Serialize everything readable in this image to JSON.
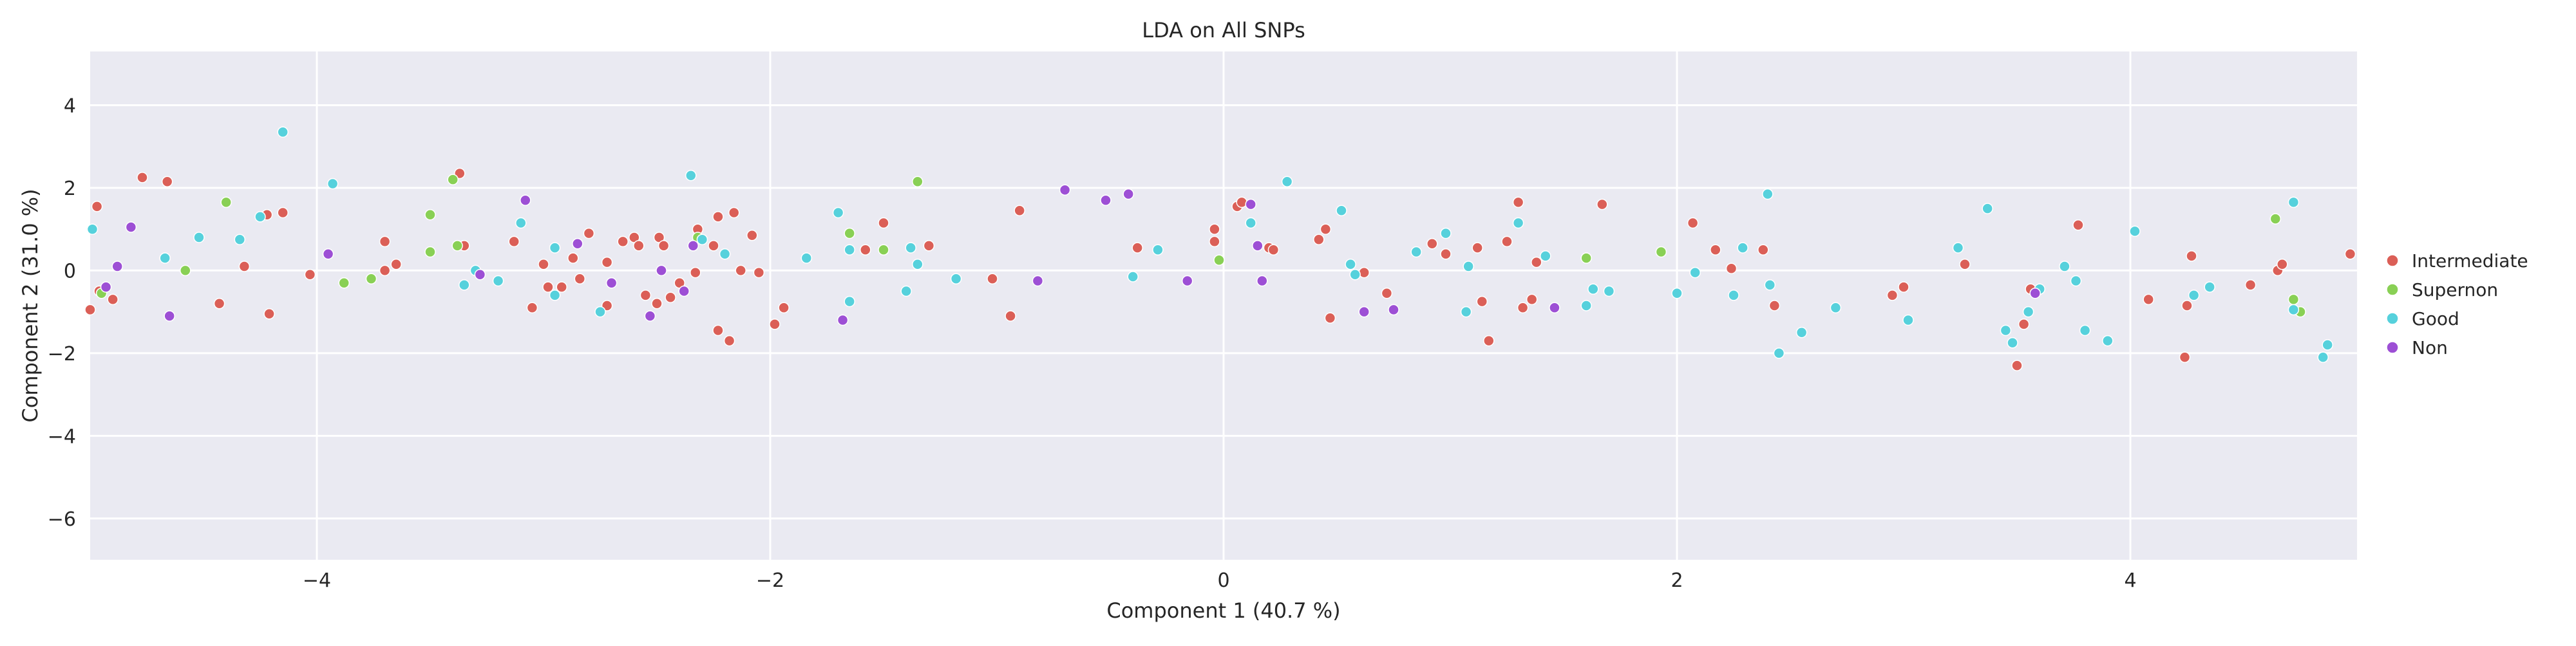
{
  "chart_data": {
    "type": "scatter",
    "title": "LDA on All SNPs",
    "xlabel": "Component 1 (40.7 %)",
    "ylabel": "Component 2 (31.0 %)",
    "xlim": [
      -5.0,
      5.0
    ],
    "ylim": [
      -7.0,
      5.3
    ],
    "xticks": [
      -4,
      -2,
      0,
      2,
      4
    ],
    "yticks": [
      -6,
      -4,
      -2,
      0,
      2,
      4
    ],
    "grid": true,
    "legend_position": "right",
    "background_color": "#eaeaf2",
    "series": [
      {
        "name": "Intermediate",
        "color": "#db5f57",
        "points": [
          [
            -5.0,
            -0.95
          ],
          [
            -4.97,
            1.55
          ],
          [
            -4.96,
            -0.5
          ],
          [
            -4.9,
            -0.7
          ],
          [
            -4.77,
            2.25
          ],
          [
            -4.66,
            2.15
          ],
          [
            -4.43,
            -0.8
          ],
          [
            -4.32,
            0.1
          ],
          [
            -4.22,
            1.35
          ],
          [
            -4.21,
            -1.05
          ],
          [
            -4.15,
            1.4
          ],
          [
            -4.03,
            -0.1
          ],
          [
            -3.7,
            0.7
          ],
          [
            -3.7,
            0.0
          ],
          [
            -3.65,
            0.15
          ],
          [
            -3.37,
            2.35
          ],
          [
            -3.35,
            0.6
          ],
          [
            -3.13,
            0.7
          ],
          [
            -3.05,
            -0.9
          ],
          [
            -3.0,
            0.15
          ],
          [
            -2.98,
            -0.4
          ],
          [
            -2.92,
            -0.4
          ],
          [
            -2.87,
            0.3
          ],
          [
            -2.84,
            -0.2
          ],
          [
            -2.8,
            0.9
          ],
          [
            -2.72,
            -0.85
          ],
          [
            -2.72,
            0.2
          ],
          [
            -2.65,
            0.7
          ],
          [
            -2.6,
            0.8
          ],
          [
            -2.58,
            0.6
          ],
          [
            -2.55,
            -0.6
          ],
          [
            -2.5,
            -0.8
          ],
          [
            -2.49,
            0.8
          ],
          [
            -2.47,
            0.6
          ],
          [
            -2.44,
            -0.65
          ],
          [
            -2.4,
            -0.3
          ],
          [
            -2.33,
            -0.05
          ],
          [
            -2.32,
            1.0
          ],
          [
            -2.25,
            0.6
          ],
          [
            -2.23,
            1.3
          ],
          [
            -2.23,
            -1.45
          ],
          [
            -2.18,
            -1.7
          ],
          [
            -2.16,
            1.4
          ],
          [
            -2.13,
            0.0
          ],
          [
            -2.08,
            0.85
          ],
          [
            -2.05,
            -0.05
          ],
          [
            -1.98,
            -1.3
          ],
          [
            -1.94,
            -0.9
          ],
          [
            -1.58,
            0.5
          ],
          [
            -1.5,
            1.15
          ],
          [
            -1.3,
            0.6
          ],
          [
            -1.02,
            -0.2
          ],
          [
            -0.94,
            -1.1
          ],
          [
            -0.9,
            1.45
          ],
          [
            -0.38,
            0.55
          ],
          [
            -0.04,
            1.0
          ],
          [
            -0.04,
            0.7
          ],
          [
            0.06,
            1.55
          ],
          [
            0.08,
            1.65
          ],
          [
            0.2,
            0.55
          ],
          [
            0.22,
            0.5
          ],
          [
            0.42,
            0.75
          ],
          [
            0.45,
            1.0
          ],
          [
            0.47,
            -1.15
          ],
          [
            0.62,
            -0.05
          ],
          [
            0.72,
            -0.55
          ],
          [
            0.92,
            0.65
          ],
          [
            0.98,
            0.4
          ],
          [
            1.12,
            0.55
          ],
          [
            1.14,
            -0.75
          ],
          [
            1.17,
            -1.7
          ],
          [
            1.25,
            0.7
          ],
          [
            1.3,
            1.65
          ],
          [
            1.32,
            -0.9
          ],
          [
            1.36,
            -0.7
          ],
          [
            1.38,
            0.2
          ],
          [
            1.67,
            1.6
          ],
          [
            2.07,
            1.15
          ],
          [
            2.17,
            0.5
          ],
          [
            2.24,
            0.05
          ],
          [
            2.38,
            0.5
          ],
          [
            2.43,
            -0.85
          ],
          [
            2.95,
            -0.6
          ],
          [
            3.0,
            -0.4
          ],
          [
            3.27,
            0.15
          ],
          [
            3.5,
            -2.3
          ],
          [
            3.53,
            -1.3
          ],
          [
            3.56,
            -0.45
          ],
          [
            3.77,
            1.1
          ],
          [
            4.08,
            -0.7
          ],
          [
            4.24,
            -2.1
          ],
          [
            4.25,
            -0.85
          ],
          [
            4.27,
            0.35
          ],
          [
            4.53,
            -0.35
          ],
          [
            4.65,
            0.0
          ],
          [
            4.67,
            0.15
          ],
          [
            4.97,
            0.4
          ]
        ]
      },
      {
        "name": "Supernon",
        "color": "#89d055",
        "points": [
          [
            -4.95,
            -0.55
          ],
          [
            -4.58,
            0.0
          ],
          [
            -4.4,
            1.65
          ],
          [
            -3.88,
            -0.3
          ],
          [
            -3.76,
            -0.2
          ],
          [
            -3.5,
            1.35
          ],
          [
            -3.5,
            0.45
          ],
          [
            -3.4,
            2.2
          ],
          [
            -3.38,
            0.6
          ],
          [
            -2.32,
            0.8
          ],
          [
            -1.65,
            0.9
          ],
          [
            -1.5,
            0.5
          ],
          [
            -1.35,
            2.15
          ],
          [
            -0.02,
            0.25
          ],
          [
            1.6,
            0.3
          ],
          [
            1.93,
            0.45
          ],
          [
            4.64,
            1.25
          ],
          [
            4.72,
            -0.7
          ],
          [
            4.75,
            -1.0
          ]
        ]
      },
      {
        "name": "Good",
        "color": "#56d1dc",
        "points": [
          [
            -4.99,
            1.0
          ],
          [
            -4.67,
            0.3
          ],
          [
            -4.52,
            0.8
          ],
          [
            -4.34,
            0.75
          ],
          [
            -4.25,
            1.3
          ],
          [
            -4.15,
            3.35
          ],
          [
            -3.93,
            2.1
          ],
          [
            -3.35,
            -0.35
          ],
          [
            -3.3,
            0.0
          ],
          [
            -3.2,
            -0.25
          ],
          [
            -3.1,
            1.15
          ],
          [
            -2.95,
            -0.6
          ],
          [
            -2.95,
            0.55
          ],
          [
            -2.75,
            -1.0
          ],
          [
            -2.35,
            2.3
          ],
          [
            -2.3,
            0.75
          ],
          [
            -2.2,
            0.4
          ],
          [
            -1.84,
            0.3
          ],
          [
            -1.7,
            1.4
          ],
          [
            -1.65,
            -0.75
          ],
          [
            -1.65,
            0.5
          ],
          [
            -1.4,
            -0.5
          ],
          [
            -1.38,
            0.55
          ],
          [
            -1.35,
            0.15
          ],
          [
            -1.18,
            -0.2
          ],
          [
            -0.4,
            -0.15
          ],
          [
            -0.29,
            0.5
          ],
          [
            0.12,
            1.15
          ],
          [
            0.28,
            2.15
          ],
          [
            0.52,
            1.45
          ],
          [
            0.56,
            0.15
          ],
          [
            0.58,
            -0.1
          ],
          [
            0.85,
            0.45
          ],
          [
            0.98,
            0.9
          ],
          [
            1.07,
            -1.0
          ],
          [
            1.08,
            0.1
          ],
          [
            1.3,
            1.15
          ],
          [
            1.42,
            0.35
          ],
          [
            1.6,
            -0.85
          ],
          [
            1.63,
            -0.45
          ],
          [
            1.7,
            -0.5
          ],
          [
            2.0,
            -0.55
          ],
          [
            2.08,
            -0.05
          ],
          [
            2.25,
            -0.6
          ],
          [
            2.29,
            0.55
          ],
          [
            2.4,
            1.85
          ],
          [
            2.41,
            -0.35
          ],
          [
            2.45,
            -2.0
          ],
          [
            2.55,
            -1.5
          ],
          [
            2.7,
            -0.9
          ],
          [
            3.02,
            -1.2
          ],
          [
            3.24,
            0.55
          ],
          [
            3.37,
            1.5
          ],
          [
            3.45,
            -1.45
          ],
          [
            3.48,
            -1.75
          ],
          [
            3.55,
            -1.0
          ],
          [
            3.6,
            -0.45
          ],
          [
            3.71,
            0.1
          ],
          [
            3.76,
            -0.25
          ],
          [
            3.8,
            -1.45
          ],
          [
            3.9,
            -1.7
          ],
          [
            4.02,
            0.95
          ],
          [
            4.28,
            -0.6
          ],
          [
            4.35,
            -0.4
          ],
          [
            4.72,
            1.65
          ],
          [
            4.72,
            -0.95
          ],
          [
            4.85,
            -2.1
          ],
          [
            4.87,
            -1.8
          ]
        ]
      },
      {
        "name": "Non",
        "color": "#9d4fd5",
        "points": [
          [
            -4.93,
            -0.4
          ],
          [
            -4.88,
            0.1
          ],
          [
            -4.82,
            1.05
          ],
          [
            -4.65,
            -1.1
          ],
          [
            -3.95,
            0.4
          ],
          [
            -3.28,
            -0.1
          ],
          [
            -3.08,
            1.7
          ],
          [
            -2.85,
            0.65
          ],
          [
            -2.7,
            -0.3
          ],
          [
            -2.53,
            -1.1
          ],
          [
            -2.48,
            0.0
          ],
          [
            -2.38,
            -0.5
          ],
          [
            -2.34,
            0.6
          ],
          [
            -1.68,
            -1.2
          ],
          [
            -0.82,
            -0.25
          ],
          [
            -0.7,
            1.95
          ],
          [
            -0.52,
            1.7
          ],
          [
            -0.42,
            1.85
          ],
          [
            -0.16,
            -0.25
          ],
          [
            0.12,
            1.6
          ],
          [
            0.15,
            0.6
          ],
          [
            0.17,
            -0.25
          ],
          [
            0.62,
            -1.0
          ],
          [
            0.75,
            -0.95
          ],
          [
            1.46,
            -0.9
          ],
          [
            3.58,
            -0.55
          ]
        ]
      }
    ]
  }
}
